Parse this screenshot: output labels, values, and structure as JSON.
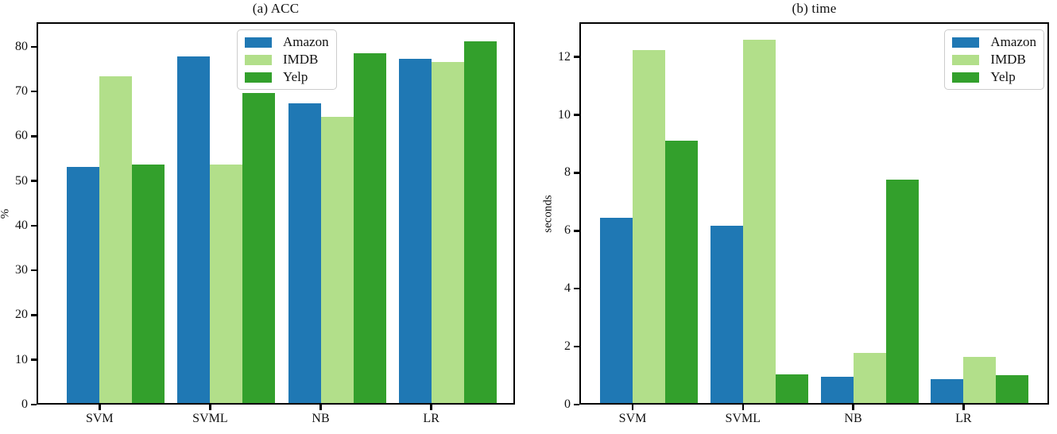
{
  "figure": {
    "background": "#ffffff",
    "text_color": "#111111",
    "spine_color": "#000000"
  },
  "chart_data": [
    {
      "type": "bar",
      "title": "(a) ACC",
      "ylabel": "%",
      "categories": [
        "SVM",
        "SVML",
        "NB",
        "LR"
      ],
      "series": [
        {
          "name": "Amazon",
          "color": "#1f78b4",
          "values": [
            53.1,
            77.9,
            67.4,
            77.3
          ]
        },
        {
          "name": "IMDB",
          "color": "#b2df8a",
          "values": [
            73.4,
            53.6,
            64.4,
            76.7
          ]
        },
        {
          "name": "Yelp",
          "color": "#33a02c",
          "values": [
            53.6,
            69.7,
            78.6,
            81.2
          ]
        }
      ],
      "ylim": [
        0,
        85.5
      ],
      "yticks": [
        0,
        10,
        20,
        30,
        40,
        50,
        60,
        70,
        80
      ],
      "grid": false,
      "legend_position": "upper center"
    },
    {
      "type": "bar",
      "title": "(b) time",
      "ylabel": "seconds",
      "categories": [
        "SVM",
        "SVML",
        "NB",
        "LR"
      ],
      "series": [
        {
          "name": "Amazon",
          "color": "#1f78b4",
          "values": [
            6.46,
            6.17,
            0.96,
            0.89
          ]
        },
        {
          "name": "IMDB",
          "color": "#b2df8a",
          "values": [
            12.25,
            12.6,
            1.79,
            1.64
          ]
        },
        {
          "name": "Yelp",
          "color": "#33a02c",
          "values": [
            9.1,
            1.04,
            7.76,
            1.02
          ]
        }
      ],
      "ylim": [
        0,
        13.2
      ],
      "yticks": [
        0,
        2,
        4,
        6,
        8,
        10,
        12
      ],
      "grid": false,
      "legend_position": "upper right"
    }
  ]
}
